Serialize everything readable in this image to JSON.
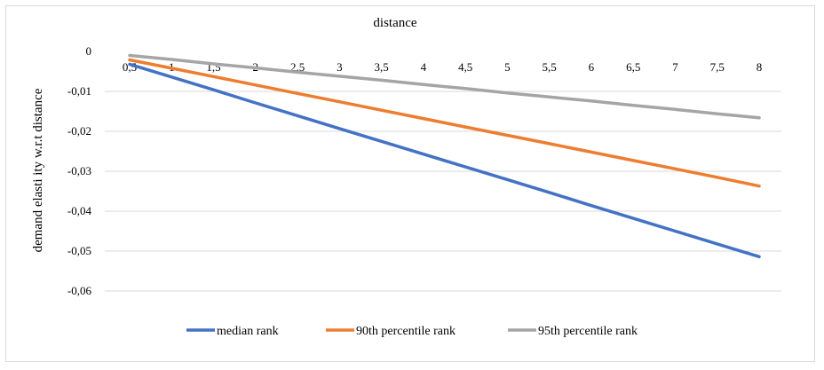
{
  "chart_data": {
    "type": "line",
    "title": "distance",
    "xlabel": "",
    "ylabel": "demand elasti ity w.r.t  distance",
    "x": [
      0.5,
      1,
      1.5,
      2,
      2.5,
      3,
      3.5,
      4,
      4.5,
      5,
      5.5,
      6,
      6.5,
      7,
      7.5,
      8
    ],
    "x_tick_labels": [
      "0,5",
      "1",
      "1,5",
      "2",
      "2,5",
      "3",
      "3,5",
      "4",
      "4,5",
      "5",
      "5,5",
      "6",
      "6,5",
      "7",
      "7,5",
      "8"
    ],
    "ylim": [
      -0.06,
      0
    ],
    "y_ticks": [
      0,
      -0.01,
      -0.02,
      -0.03,
      -0.04,
      -0.05,
      -0.06
    ],
    "y_tick_labels": [
      "0",
      "-0,01",
      "-0,02",
      "-0,03",
      "-0,04",
      "-0,05",
      "-0,06"
    ],
    "grid": true,
    "legend_position": "bottom",
    "series": [
      {
        "name": "median rank",
        "color": "#4472c4",
        "values": [
          -0.0032,
          -0.0064,
          -0.0096,
          -0.0129,
          -0.0161,
          -0.0193,
          -0.0225,
          -0.0257,
          -0.0289,
          -0.0321,
          -0.0353,
          -0.0386,
          -0.0418,
          -0.045,
          -0.0482,
          -0.0514
        ]
      },
      {
        "name": "90th percentile rank",
        "color": "#ed7d31",
        "values": [
          -0.0021,
          -0.0042,
          -0.0063,
          -0.0084,
          -0.0105,
          -0.0126,
          -0.0147,
          -0.0168,
          -0.0189,
          -0.021,
          -0.0231,
          -0.0252,
          -0.0273,
          -0.0294,
          -0.0315,
          -0.0337
        ]
      },
      {
        "name": "95th percentile rank",
        "color": "#a5a5a5",
        "values": [
          -0.001,
          -0.002,
          -0.0031,
          -0.0041,
          -0.0052,
          -0.0062,
          -0.0072,
          -0.0083,
          -0.0093,
          -0.0104,
          -0.0114,
          -0.0124,
          -0.0135,
          -0.0145,
          -0.0156,
          -0.0166
        ]
      }
    ]
  }
}
